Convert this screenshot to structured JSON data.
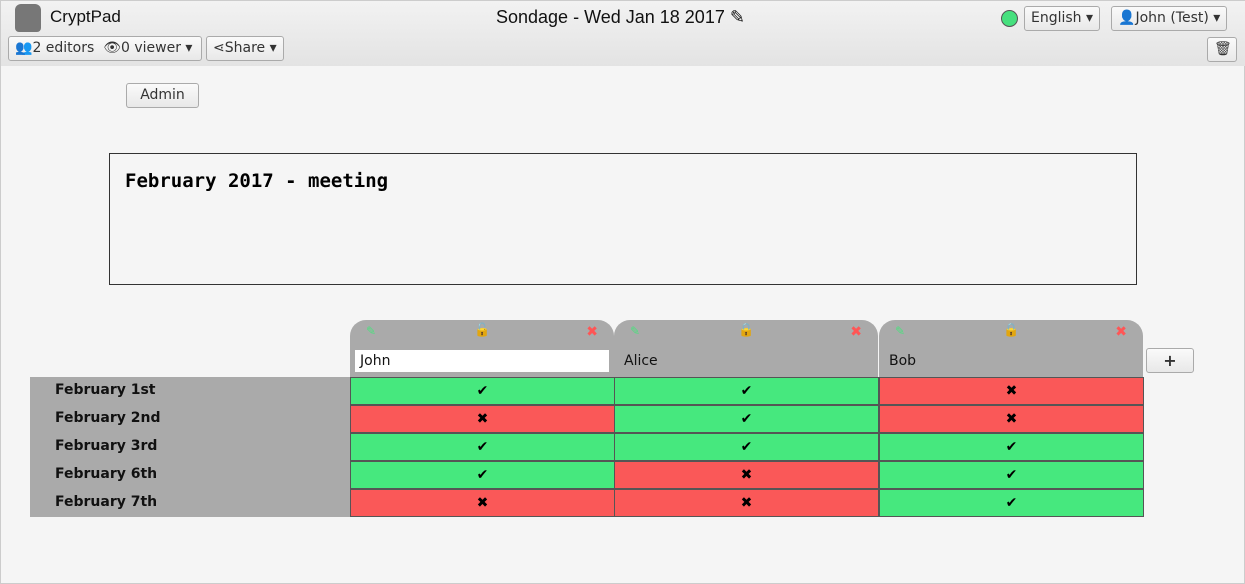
{
  "app": {
    "name": "CryptPad",
    "title": "Sondage - Wed Jan 18 2017"
  },
  "toolbar": {
    "editors": "2 editors",
    "viewers": "0 viewer",
    "share": "Share",
    "language": "English",
    "user": "John (Test)",
    "status_color": "#46e07e"
  },
  "admin_label": "Admin",
  "description": "February 2017 - meeting",
  "poll": {
    "columns": [
      {
        "name": "John",
        "locked": false,
        "editing": true
      },
      {
        "name": "Alice",
        "locked": true
      },
      {
        "name": "Bob",
        "locked": true
      }
    ],
    "rows": [
      "February 1st",
      "February 2nd",
      "February 3rd",
      "February 6th",
      "February 7th"
    ],
    "votes": [
      [
        true,
        true,
        false
      ],
      [
        false,
        true,
        false
      ],
      [
        true,
        true,
        true
      ],
      [
        true,
        false,
        true
      ],
      [
        false,
        false,
        true
      ]
    ],
    "yes_symbol": "✔",
    "no_symbol": "✖",
    "add_label": "+",
    "colors": {
      "yes": "#46e87e",
      "no": "#fa5858"
    }
  }
}
